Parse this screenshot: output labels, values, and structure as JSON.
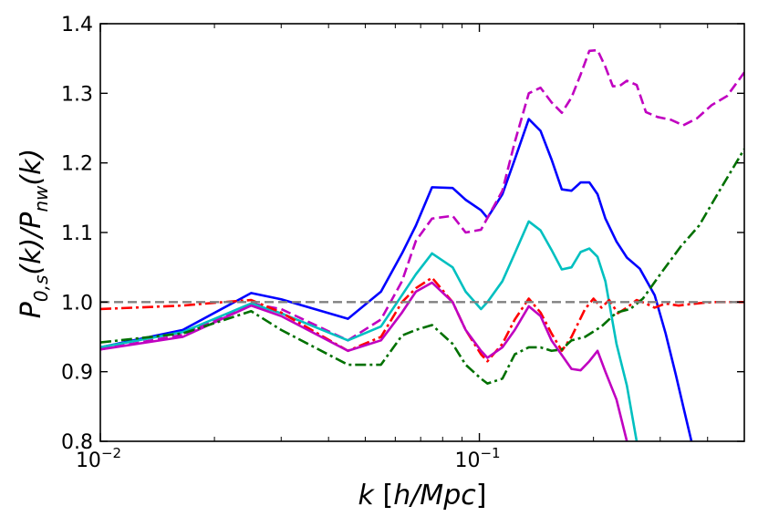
{
  "chart_data": {
    "type": "line",
    "xscale": "log",
    "xlim": [
      0.01,
      0.5
    ],
    "ylim": [
      0.8,
      1.4
    ],
    "grid": false,
    "legend": "none",
    "xlabel_tex": "k [h/Mpc]",
    "ylabel_tex": "P_{0,s}(k)/P_{nw}(k)",
    "yticks": [
      "0.8",
      "0.9",
      "1.0",
      "1.1",
      "1.2",
      "1.3",
      "1.4"
    ],
    "xticks": [
      {
        "value": 0.01,
        "base": "10",
        "exp": "−2"
      },
      {
        "value": 0.1,
        "base": "10",
        "exp": "−1"
      }
    ],
    "reference_line": {
      "y": 1.0,
      "color": "#808080",
      "style": "dashed"
    },
    "series": [
      {
        "color": "#0000ff",
        "style": "solid",
        "x": [
          0.01,
          0.0165,
          0.025,
          0.03,
          0.045,
          0.055,
          0.0625,
          0.068,
          0.075,
          0.085,
          0.092,
          0.101,
          0.105,
          0.115,
          0.124,
          0.135,
          0.145,
          0.155,
          0.165,
          0.175,
          0.185,
          0.195,
          0.205,
          0.215,
          0.23,
          0.245,
          0.265,
          0.29,
          0.31,
          0.33,
          0.345,
          0.37
        ],
        "y": [
          0.935,
          0.96,
          1.013,
          1.004,
          0.976,
          1.015,
          1.07,
          1.11,
          1.165,
          1.164,
          1.147,
          1.132,
          1.121,
          1.155,
          1.205,
          1.263,
          1.246,
          1.205,
          1.162,
          1.16,
          1.172,
          1.172,
          1.155,
          1.12,
          1.087,
          1.064,
          1.048,
          1.01,
          0.955,
          0.895,
          0.85,
          0.78
        ]
      },
      {
        "color": "#c000c0",
        "style": "dashed",
        "x": [
          0.01,
          0.0165,
          0.025,
          0.03,
          0.045,
          0.055,
          0.0625,
          0.068,
          0.075,
          0.085,
          0.092,
          0.101,
          0.115,
          0.124,
          0.135,
          0.145,
          0.155,
          0.165,
          0.175,
          0.185,
          0.195,
          0.205,
          0.215,
          0.225,
          0.235,
          0.245,
          0.26,
          0.275,
          0.295,
          0.32,
          0.345,
          0.375,
          0.41,
          0.45,
          0.5
        ],
        "y": [
          0.932,
          0.953,
          0.998,
          0.99,
          0.945,
          0.975,
          1.03,
          1.088,
          1.12,
          1.124,
          1.1,
          1.104,
          1.16,
          1.23,
          1.3,
          1.308,
          1.287,
          1.272,
          1.294,
          1.327,
          1.361,
          1.362,
          1.338,
          1.31,
          1.311,
          1.318,
          1.312,
          1.273,
          1.266,
          1.262,
          1.254,
          1.264,
          1.283,
          1.296,
          1.33
        ]
      },
      {
        "color": "#00c0c0",
        "style": "solid",
        "x": [
          0.01,
          0.0165,
          0.025,
          0.03,
          0.045,
          0.055,
          0.0625,
          0.068,
          0.075,
          0.085,
          0.092,
          0.101,
          0.105,
          0.115,
          0.124,
          0.135,
          0.145,
          0.155,
          0.165,
          0.175,
          0.185,
          0.195,
          0.205,
          0.215,
          0.23,
          0.245,
          0.26
        ],
        "y": [
          0.935,
          0.957,
          0.998,
          0.984,
          0.945,
          0.965,
          1.01,
          1.04,
          1.07,
          1.05,
          1.015,
          0.99,
          1.0,
          1.03,
          1.07,
          1.116,
          1.103,
          1.075,
          1.047,
          1.05,
          1.072,
          1.077,
          1.065,
          1.03,
          0.94,
          0.88,
          0.8
        ]
      },
      {
        "color": "#ff0000",
        "style": "dashdot",
        "x": [
          0.01,
          0.0165,
          0.02,
          0.025,
          0.03,
          0.045,
          0.055,
          0.0625,
          0.068,
          0.075,
          0.085,
          0.092,
          0.101,
          0.105,
          0.115,
          0.124,
          0.135,
          0.145,
          0.155,
          0.165,
          0.175,
          0.19,
          0.2,
          0.21,
          0.22,
          0.232,
          0.245,
          0.26,
          0.275,
          0.29,
          0.31,
          0.335,
          0.36,
          0.39,
          0.42,
          0.46,
          0.5
        ],
        "y": [
          0.99,
          0.995,
          0.999,
          1.003,
          0.985,
          0.93,
          0.95,
          1.0,
          1.02,
          1.035,
          1.0,
          0.96,
          0.925,
          0.915,
          0.94,
          0.975,
          1.005,
          0.985,
          0.955,
          0.93,
          0.95,
          0.99,
          1.005,
          0.992,
          1.003,
          0.984,
          0.992,
          1.003,
          0.998,
          0.992,
          0.998,
          0.995,
          0.997,
          0.999,
          1.0,
          1.0,
          1.0
        ]
      },
      {
        "color": "#c000c0",
        "style": "solid",
        "x": [
          0.01,
          0.0165,
          0.025,
          0.03,
          0.045,
          0.055,
          0.0625,
          0.068,
          0.075,
          0.085,
          0.092,
          0.101,
          0.105,
          0.115,
          0.124,
          0.135,
          0.145,
          0.155,
          0.165,
          0.175,
          0.185,
          0.195,
          0.205,
          0.215,
          0.23,
          0.245
        ],
        "y": [
          0.932,
          0.95,
          0.995,
          0.98,
          0.93,
          0.945,
          0.985,
          1.015,
          1.028,
          1.0,
          0.96,
          0.93,
          0.92,
          0.935,
          0.96,
          0.994,
          0.98,
          0.945,
          0.924,
          0.904,
          0.902,
          0.915,
          0.93,
          0.9,
          0.86,
          0.8
        ]
      },
      {
        "color": "#007000",
        "style": "dashdot",
        "x": [
          0.01,
          0.0165,
          0.025,
          0.03,
          0.045,
          0.055,
          0.0625,
          0.068,
          0.075,
          0.085,
          0.092,
          0.101,
          0.105,
          0.115,
          0.124,
          0.135,
          0.145,
          0.155,
          0.165,
          0.175,
          0.19,
          0.21,
          0.23,
          0.25,
          0.27,
          0.3,
          0.34,
          0.38,
          0.43,
          0.5
        ],
        "y": [
          0.942,
          0.955,
          0.987,
          0.96,
          0.91,
          0.91,
          0.952,
          0.96,
          0.967,
          0.94,
          0.91,
          0.89,
          0.883,
          0.89,
          0.925,
          0.935,
          0.935,
          0.93,
          0.932,
          0.945,
          0.95,
          0.965,
          0.985,
          0.99,
          1.005,
          1.04,
          1.08,
          1.11,
          1.16,
          1.22
        ]
      }
    ]
  }
}
